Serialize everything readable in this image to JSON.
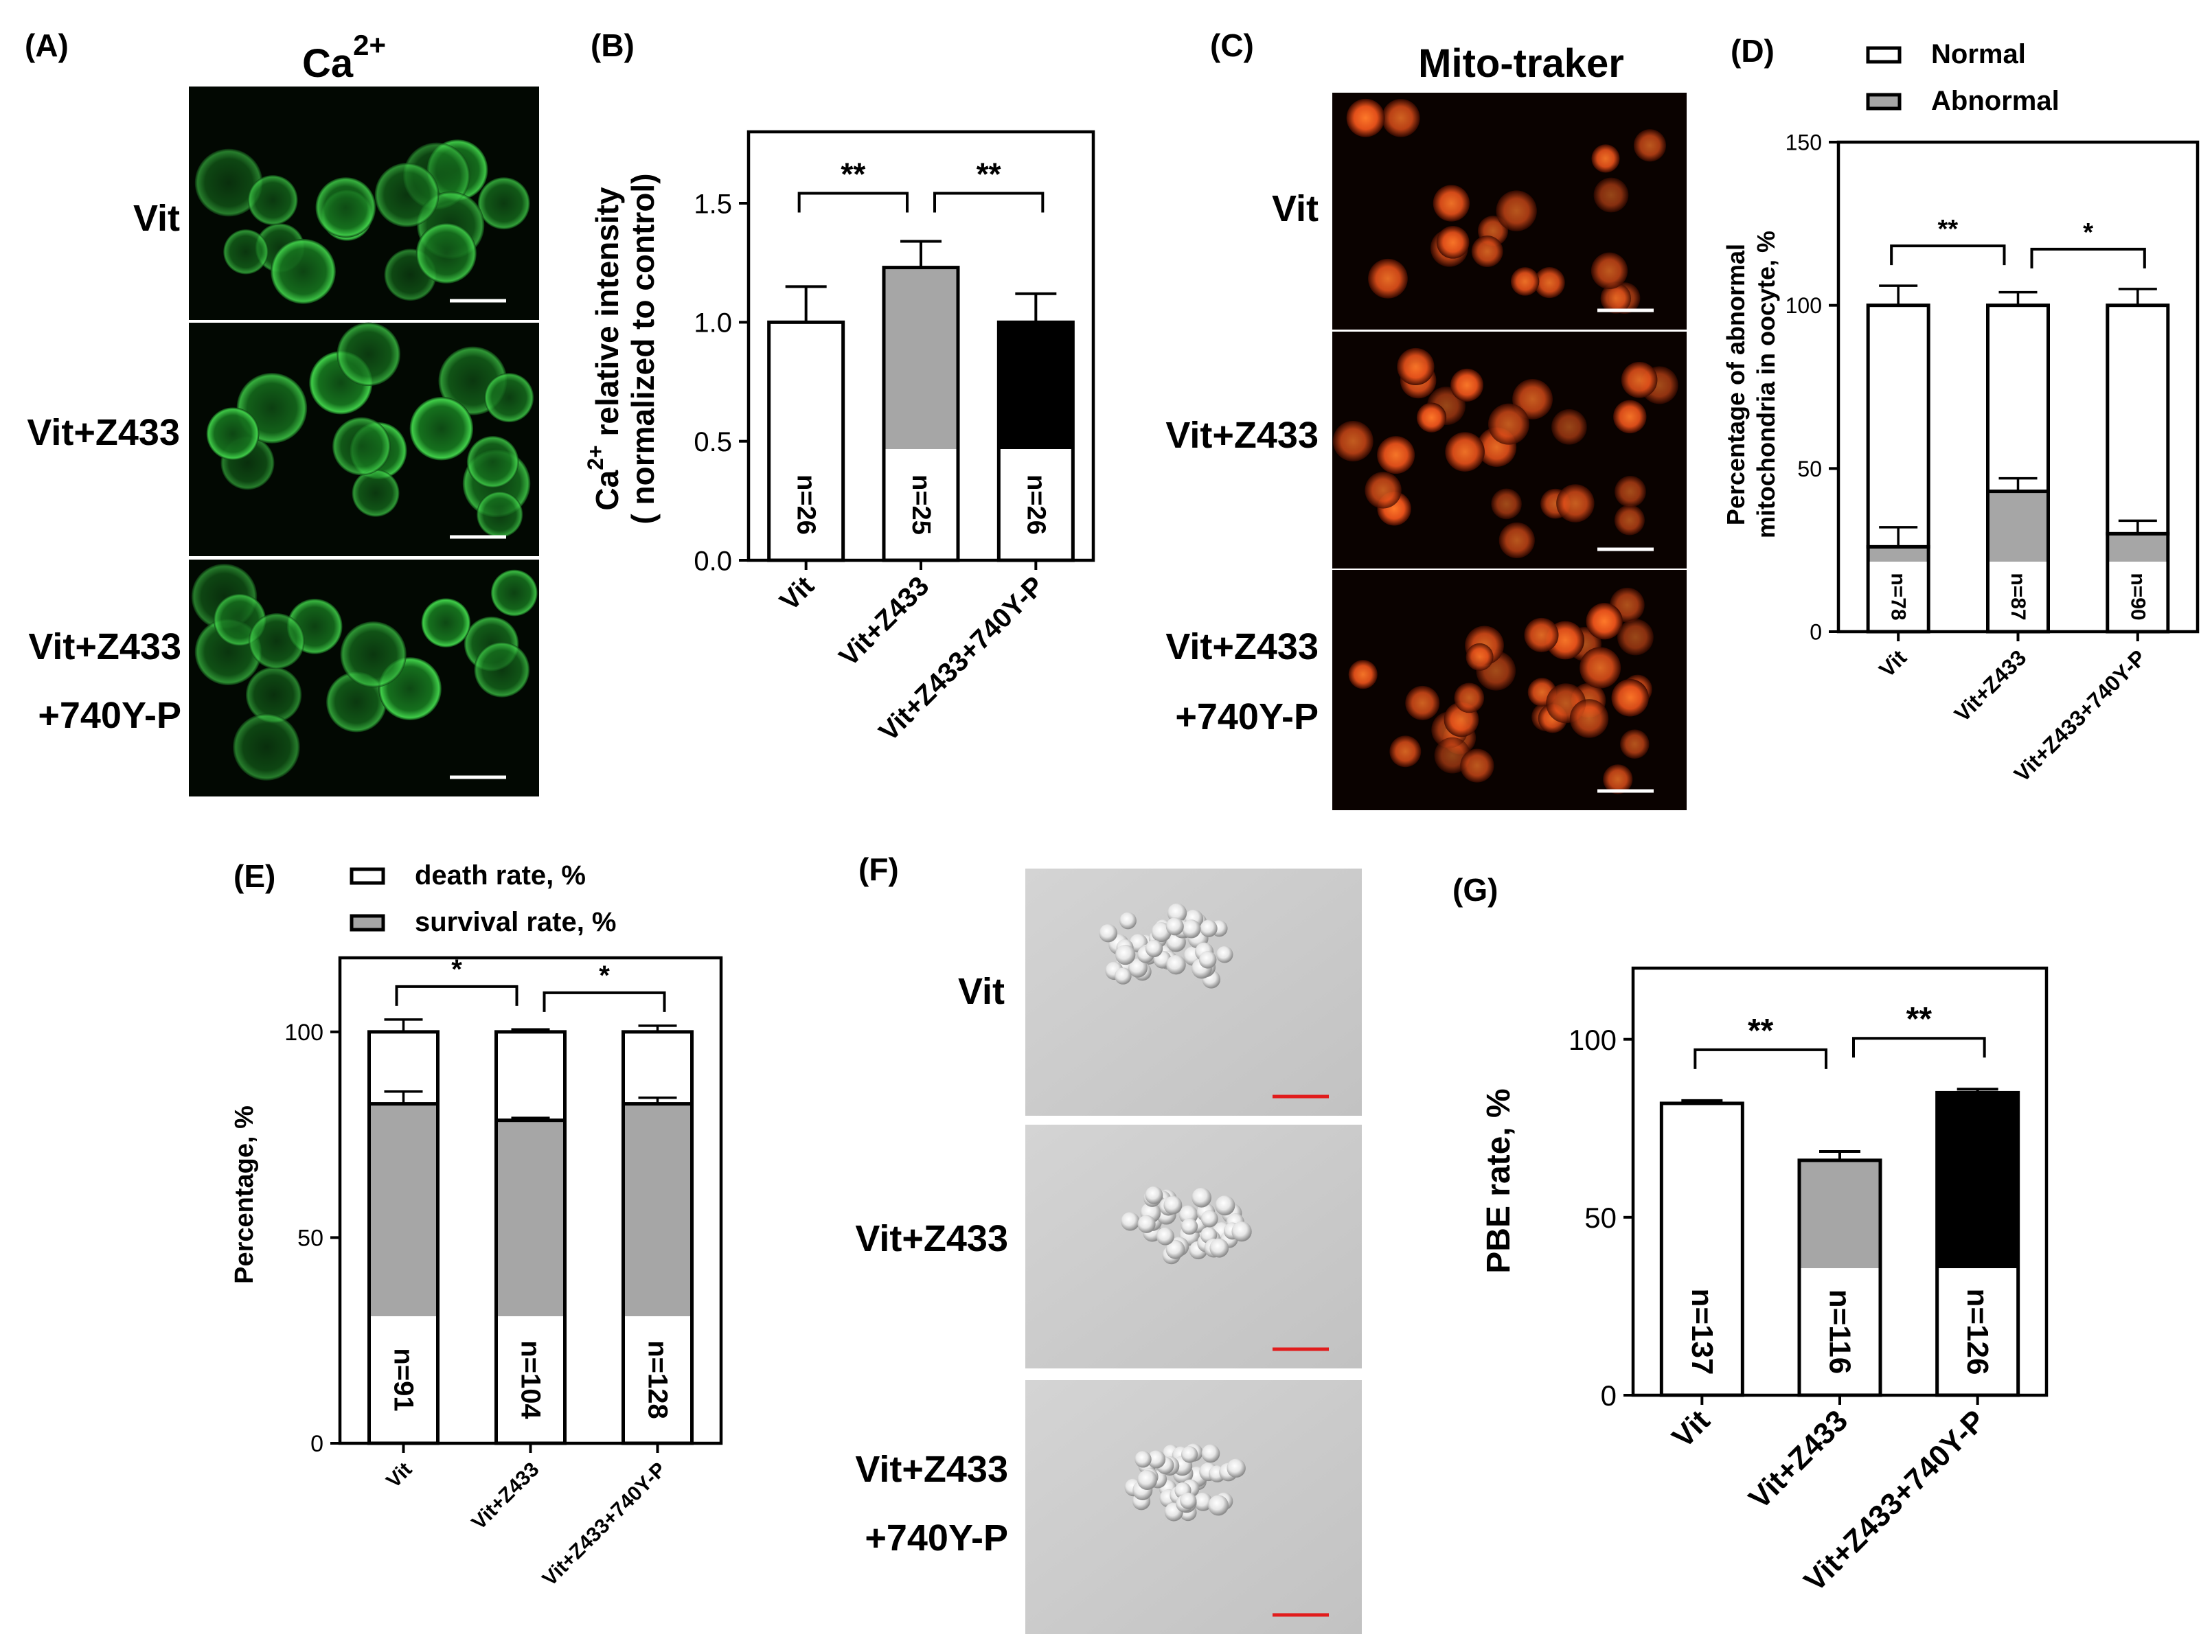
{
  "panels": {
    "A": {
      "letter": "(A)",
      "title_main": "Ca",
      "title_sup": "2+",
      "rows": [
        "Vit",
        "Vit+Z433",
        "Vit+Z433",
        "+740Y-P"
      ]
    },
    "C": {
      "letter": "(C)",
      "title": "Mito-traker",
      "rows": [
        "Vit",
        "Vit+Z433",
        "Vit+Z433",
        "+740Y-P"
      ]
    },
    "F": {
      "letter": "(F)",
      "rows": [
        "Vit",
        "Vit+Z433",
        "Vit+Z433",
        "+740Y-P"
      ]
    }
  },
  "colors": {
    "black": "#000000",
    "gray": "#a6a6a6",
    "white": "#ffffff",
    "green": "#39c43a",
    "orange": "#e8501a",
    "scale_red": "#e11c1c"
  },
  "chart_data": [
    {
      "id": "B",
      "letter": "(B)",
      "type": "bar",
      "ylabel_line1_a": "Ca",
      "ylabel_line1_sup": "2+",
      "ylabel_line1_b": " relative intensity",
      "ylabel_line2": "( normalized to control)",
      "ylim": [
        0,
        1.8
      ],
      "yticks": [
        0.0,
        0.5,
        1.0,
        1.5
      ],
      "ytick_labels": [
        "0.0",
        "0.5",
        "1.0",
        "1.5"
      ],
      "categories": [
        "Vit",
        "Vit+Z433",
        "Vit+Z433+740Y-P"
      ],
      "values": [
        1.0,
        1.23,
        1.0
      ],
      "errors": [
        0.15,
        0.11,
        0.12
      ],
      "fills": [
        "white",
        "gray",
        "black"
      ],
      "n_labels": [
        "n=26",
        "n=25",
        "n=26"
      ],
      "significance": [
        {
          "from": 0,
          "to": 1,
          "label": "**"
        },
        {
          "from": 1,
          "to": 2,
          "label": "**"
        }
      ]
    },
    {
      "id": "D",
      "letter": "(D)",
      "type": "stacked-bar",
      "ylabel_line1": "Percentage of abnormal",
      "ylabel_line2": "mitochondria in oocyte, %",
      "ylim": [
        0,
        150
      ],
      "yticks": [
        0,
        50,
        100,
        150
      ],
      "ytick_labels": [
        "0",
        "50",
        "100",
        "150"
      ],
      "categories": [
        "Vit",
        "Vit+Z433",
        "Vit+Z433+740Y-P"
      ],
      "legend": [
        {
          "label": "Normal",
          "fill": "white"
        },
        {
          "label": "Abnormal",
          "fill": "gray"
        }
      ],
      "series": [
        {
          "name": "Abnormal",
          "values": [
            26,
            43,
            30
          ],
          "errors": [
            6,
            4,
            4
          ]
        },
        {
          "name": "Normal",
          "values": [
            74,
            57,
            70
          ],
          "errors": [
            6,
            4,
            5
          ]
        }
      ],
      "n_labels": [
        "n=78",
        "n=87",
        "n=90"
      ],
      "significance": [
        {
          "from": 0,
          "to": 1,
          "label": "**"
        },
        {
          "from": 1,
          "to": 2,
          "label": "*"
        }
      ]
    },
    {
      "id": "E",
      "letter": "(E)",
      "type": "stacked-bar",
      "ylabel": "Percentage, %",
      "ylim": [
        0,
        118
      ],
      "yticks": [
        0,
        50,
        100
      ],
      "ytick_labels": [
        "0",
        "50",
        "100"
      ],
      "categories": [
        "Vit",
        "Vit+Z433",
        "Vit+Z433+740Y-P"
      ],
      "legend": [
        {
          "label": "death rate, %",
          "fill": "white"
        },
        {
          "label": "survival rate, %",
          "fill": "gray"
        }
      ],
      "series": [
        {
          "name": "survival rate, %",
          "values": [
            82.5,
            78.5,
            82.5
          ],
          "errors": [
            3,
            0.6,
            1.5
          ]
        },
        {
          "name": "death rate, %",
          "values": [
            17.5,
            21.5,
            17.5
          ],
          "errors": [
            3,
            0.6,
            1.5
          ]
        }
      ],
      "n_labels": [
        "n=91",
        "n=104",
        "n=128"
      ],
      "significance": [
        {
          "from": 0,
          "to": 1,
          "label": "*"
        },
        {
          "from": 1,
          "to": 2,
          "label": "*"
        }
      ]
    },
    {
      "id": "G",
      "letter": "(G)",
      "type": "bar",
      "ylabel": "PBE rate, %",
      "ylim": [
        0,
        120
      ],
      "yticks": [
        0,
        50,
        100
      ],
      "ytick_labels": [
        "0",
        "50",
        "100"
      ],
      "categories": [
        "Vit",
        "Vit+Z433",
        "Vit+Z433+740Y-P"
      ],
      "values": [
        82,
        66,
        85
      ],
      "errors": [
        0.8,
        2.5,
        1.0
      ],
      "fills": [
        "white",
        "gray",
        "black"
      ],
      "n_labels": [
        "n=137",
        "n=116",
        "n=126"
      ],
      "significance": [
        {
          "from": 0,
          "to": 1,
          "label": "**"
        },
        {
          "from": 1,
          "to": 2,
          "label": "**"
        }
      ]
    }
  ]
}
